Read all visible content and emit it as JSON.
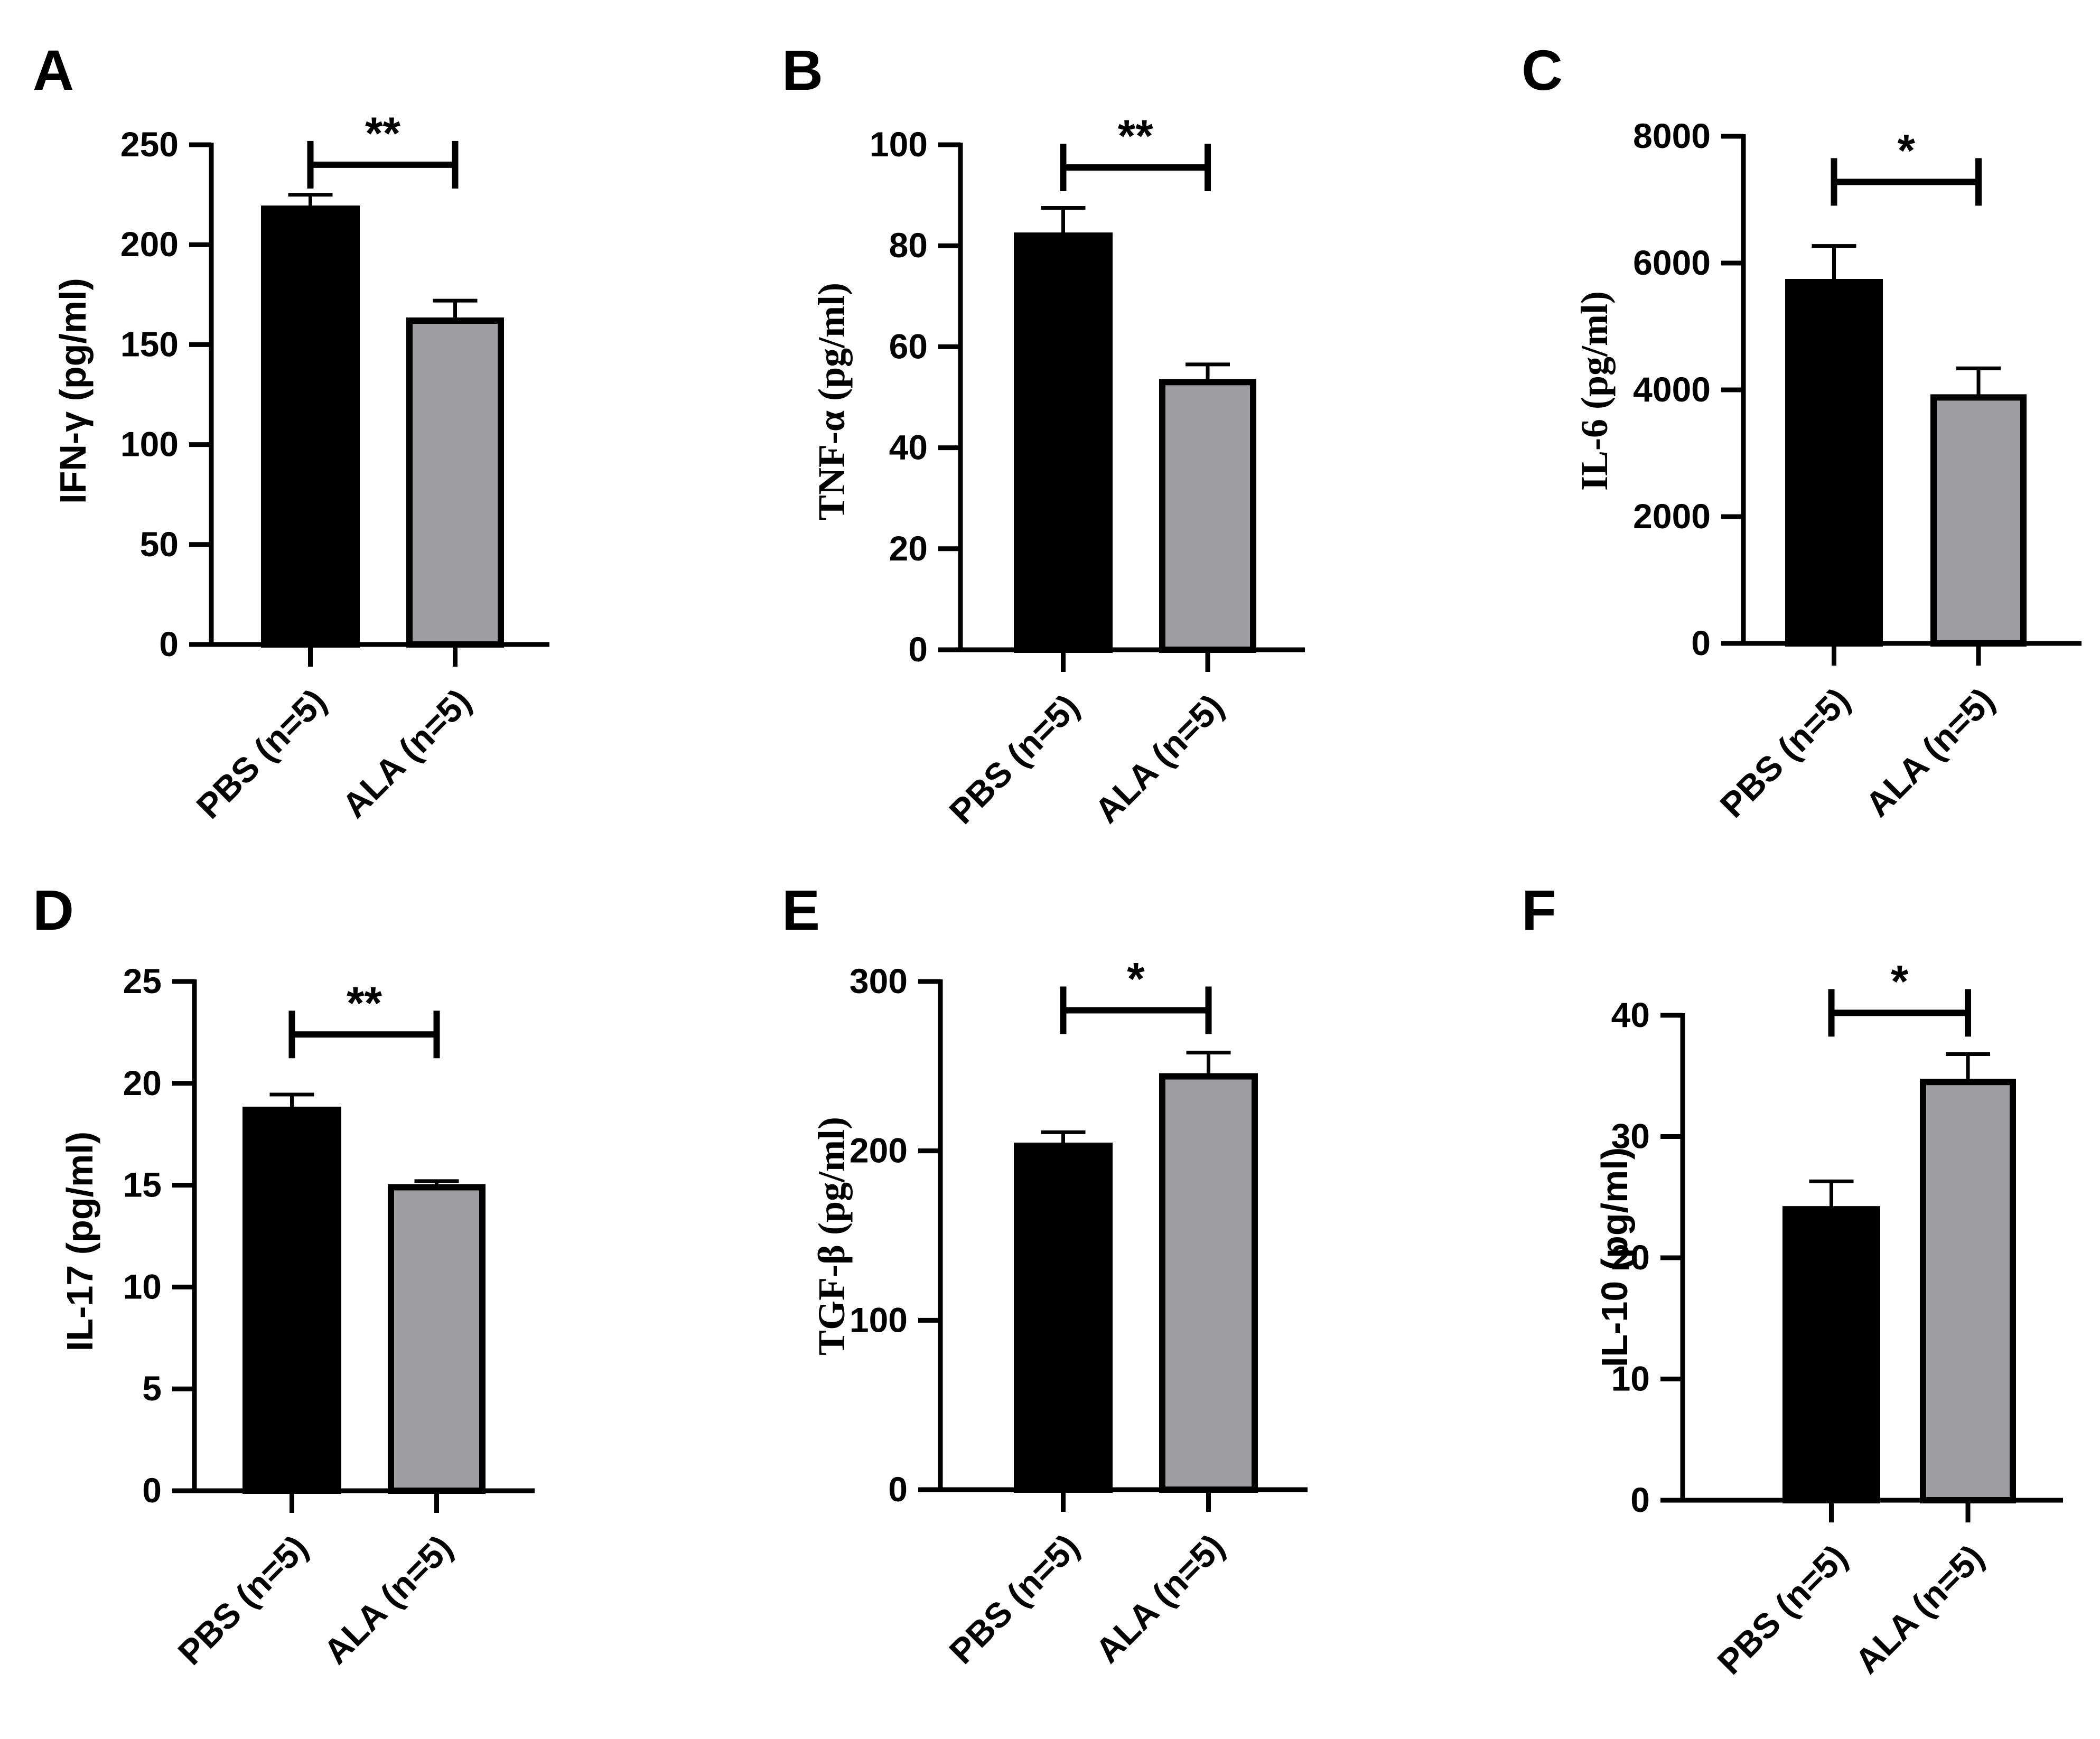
{
  "colors": {
    "pbs": "#000000",
    "ala": "#9e9da2",
    "axis": "#000000",
    "background": "#ffffff"
  },
  "chart_data": [
    {
      "panel": "A",
      "type": "bar",
      "categories": [
        "PBS (n=5)",
        "ALA (n=5)"
      ],
      "values": [
        218,
        162
      ],
      "errors": [
        7,
        10
      ],
      "ylabel": "IFN-γ (pg/ml)",
      "ylabel_style": "sans",
      "ylim": [
        0,
        250
      ],
      "yticks": [
        0,
        50,
        100,
        150,
        200,
        250
      ],
      "significance": "**",
      "sig_value": 240
    },
    {
      "panel": "B",
      "type": "bar",
      "categories": [
        "PBS (n=5)",
        "ALA (n=5)"
      ],
      "values": [
        82,
        53
      ],
      "errors": [
        5.5,
        3.5
      ],
      "ylabel": "TNF-α (pg/ml)",
      "ylabel_style": "serif",
      "ylim": [
        0,
        100
      ],
      "yticks": [
        0,
        20,
        40,
        60,
        80,
        100
      ],
      "significance": "**",
      "sig_value": 95.5
    },
    {
      "panel": "C",
      "type": "bar",
      "categories": [
        "PBS (n=5)",
        "ALA (n=5)"
      ],
      "values": [
        5700,
        3880
      ],
      "errors": [
        570,
        460
      ],
      "ylabel": "IL-6 (pg/ml)",
      "ylabel_style": "serif",
      "ylim": [
        0,
        8000
      ],
      "yticks": [
        0,
        2000,
        4000,
        6000,
        8000
      ],
      "significance": "*",
      "sig_value": 7280
    },
    {
      "panel": "D",
      "type": "bar",
      "categories": [
        "PBS (n=5)",
        "ALA (n=5)"
      ],
      "values": [
        18.7,
        14.9
      ],
      "errors": [
        0.75,
        0.3
      ],
      "ylabel": "IL-17 (pg/ml)",
      "ylabel_style": "sans",
      "ylim": [
        0,
        25
      ],
      "yticks": [
        0,
        5,
        10,
        15,
        20,
        25
      ],
      "significance": "**",
      "sig_value": 22.4
    },
    {
      "panel": "E",
      "type": "bar",
      "categories": [
        "PBS (n=5)",
        "ALA (n=5)"
      ],
      "values": [
        203,
        244
      ],
      "errors": [
        8,
        14
      ],
      "ylabel": "TGF-β (pg/ml)",
      "ylabel_style": "serif",
      "ylim": [
        0,
        300
      ],
      "yticks": [
        0,
        100,
        200,
        300
      ],
      "significance": "*",
      "sig_value": 283
    },
    {
      "panel": "F",
      "type": "bar",
      "categories": [
        "PBS (n=5)",
        "ALA (n=5)"
      ],
      "values": [
        24,
        34.5
      ],
      "errors": [
        2.3,
        2.3
      ],
      "ylabel": "IL-10 (pg/ml)",
      "ylabel_style": "sans",
      "ylim": [
        0,
        40
      ],
      "yticks": [
        0,
        10,
        20,
        30,
        40
      ],
      "significance": "*",
      "sig_value": 40.2
    }
  ]
}
